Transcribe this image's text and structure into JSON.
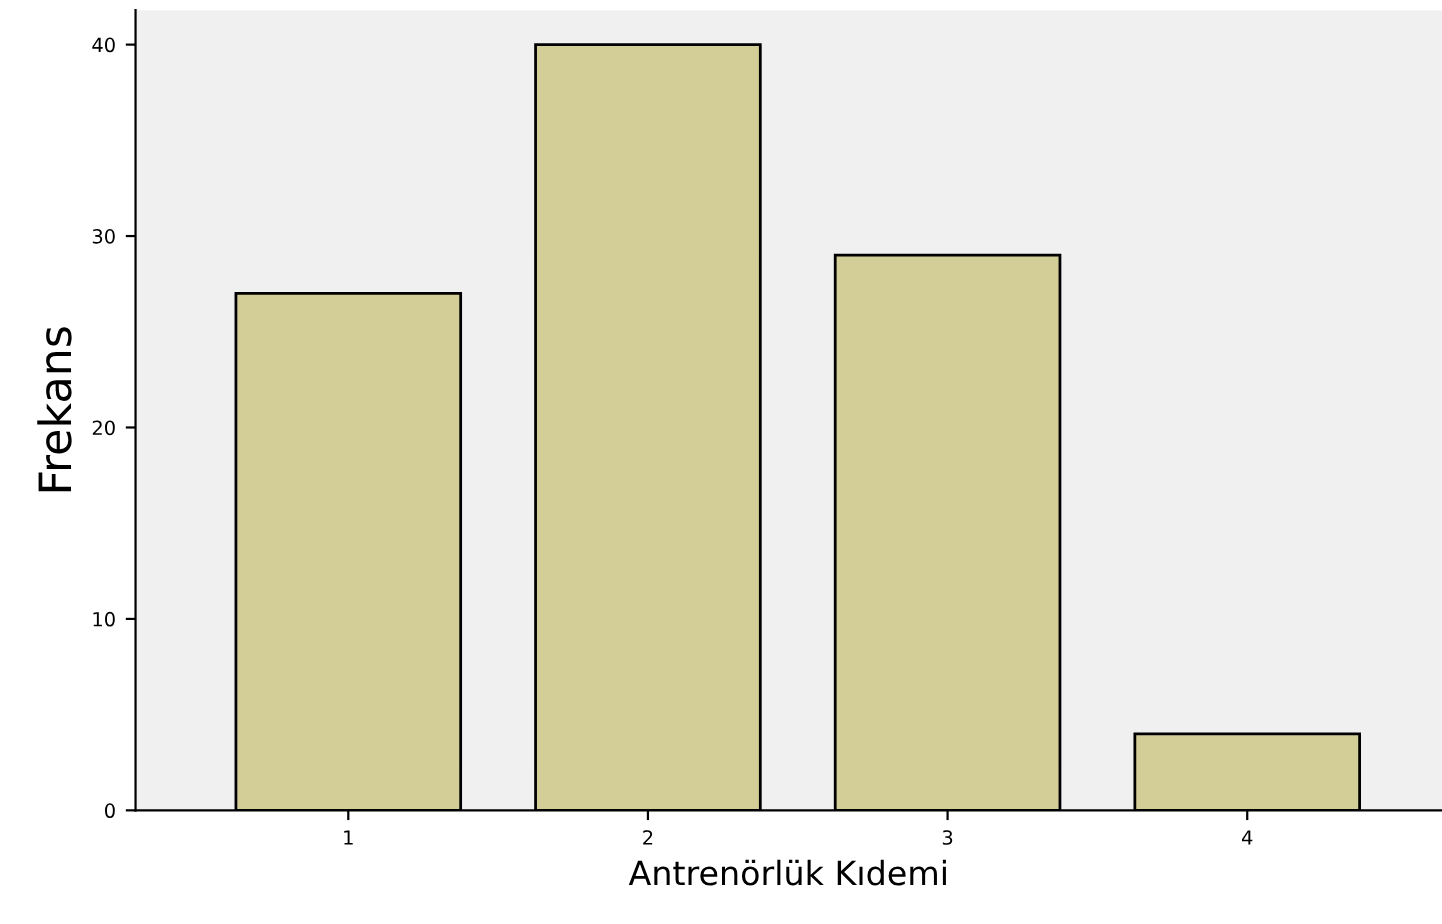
{
  "chart_data": {
    "type": "bar",
    "xlabel": "Antrenörlük Kıdemi",
    "ylabel": "Frekans",
    "categories": [
      "1",
      "2",
      "3",
      "4"
    ],
    "values": [
      27,
      40,
      29,
      4
    ],
    "color": "#d3ce97",
    "ylim": [
      0,
      41.8
    ],
    "yticks": [
      0,
      10,
      20,
      30,
      40
    ],
    "grid": false,
    "legend": false
  }
}
